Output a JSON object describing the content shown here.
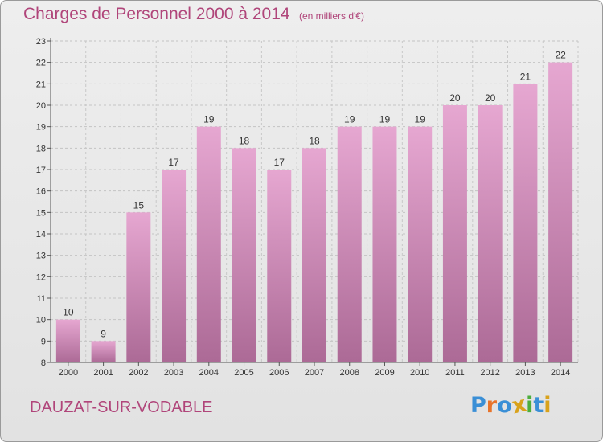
{
  "header": {
    "title": "Charges de Personnel 2000 à 2014",
    "subtitle": "(en milliers d'€)"
  },
  "footer": {
    "commune": "DAUZAT-SUR-VODABLE",
    "logo_text": "Proxiti"
  },
  "colors": {
    "accent": "#b0457a",
    "bar_top": "#e6a7d1",
    "bar_bottom": "#ac6a96",
    "background": "#e8e8e8"
  },
  "chart_data": {
    "type": "bar",
    "title": "Charges de Personnel 2000 à 2014",
    "subtitle": "(en milliers d'€)",
    "categories": [
      "2000",
      "2001",
      "2002",
      "2003",
      "2004",
      "2005",
      "2006",
      "2007",
      "2008",
      "2009",
      "2010",
      "2011",
      "2012",
      "2013",
      "2014"
    ],
    "values": [
      10,
      9,
      15,
      17,
      19,
      18,
      17,
      18,
      19,
      19,
      19,
      20,
      20,
      21,
      22
    ],
    "ylim": [
      8,
      23
    ],
    "yticks": [
      8,
      9,
      10,
      11,
      12,
      13,
      14,
      15,
      16,
      17,
      18,
      19,
      20,
      21,
      22,
      23
    ],
    "grid": true,
    "legend": "none"
  }
}
